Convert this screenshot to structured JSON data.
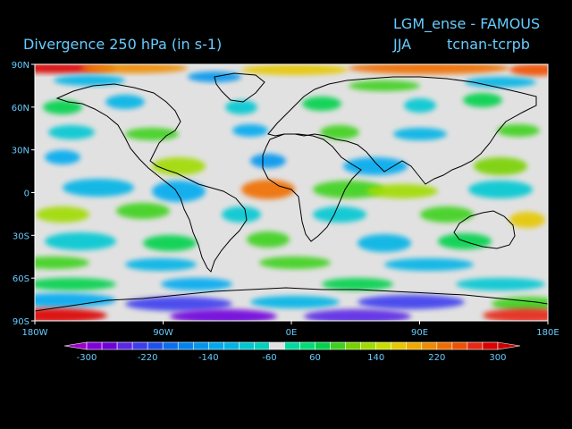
{
  "header": {
    "model_label": "LGM_ense - FAMOUS",
    "variable_label": "Divergence   250 hPa  (in s-1)",
    "season_label": "JJA",
    "experiment_label": "tcnan-tcrpb"
  },
  "map": {
    "projection": "cylindrical equidistant",
    "lon_range": [
      -180,
      180
    ],
    "lat_range": [
      -90,
      90
    ],
    "lat_ticks": [
      "90N",
      "60N",
      "30N",
      "0",
      "30S",
      "60S",
      "90S"
    ],
    "lon_ticks": [
      "180W",
      "90W",
      "0E",
      "90E",
      "180E"
    ]
  },
  "colorbar": {
    "tick_labels": [
      "-300",
      "-220",
      "-140",
      "-60",
      "60",
      "140",
      "220",
      "300"
    ],
    "levels": [
      -300,
      -280,
      -260,
      -240,
      -220,
      -200,
      -180,
      -160,
      -140,
      -120,
      -100,
      -80,
      -60,
      -40,
      40,
      60,
      80,
      100,
      120,
      140,
      160,
      180,
      200,
      220,
      240,
      260,
      280,
      300
    ],
    "colors": [
      "#a000c8",
      "#8200dc",
      "#6e00dc",
      "#5a28e6",
      "#3c3cf0",
      "#1e50f0",
      "#0a6ef0",
      "#0082f0",
      "#0096f0",
      "#00aaf0",
      "#00b4e6",
      "#00c8d2",
      "#00d2be",
      "#e1e1e1",
      "#00dca0",
      "#00dc78",
      "#00d24b",
      "#3cd21e",
      "#78d200",
      "#a0dc00",
      "#c8dc00",
      "#e6c800",
      "#f0aa00",
      "#f08c00",
      "#f06e00",
      "#f05000",
      "#e62814",
      "#dc0000",
      "#c80000"
    ]
  }
}
